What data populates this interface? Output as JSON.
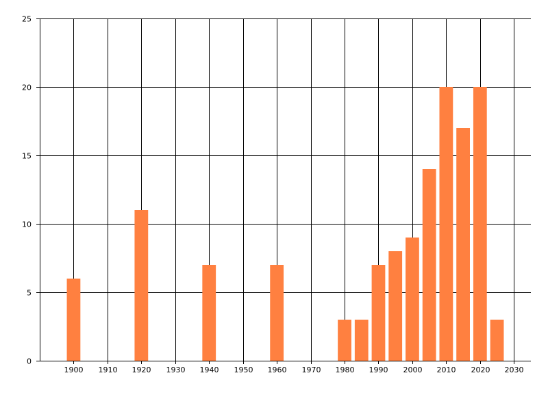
{
  "chart_data": {
    "type": "bar",
    "x": [
      1900,
      1920,
      1940,
      1960,
      1980,
      1985,
      1990,
      1995,
      2000,
      2005,
      2010,
      2015,
      2020,
      2025
    ],
    "values": [
      6,
      11,
      7,
      7,
      3,
      3,
      7,
      8,
      9,
      14,
      20,
      17,
      20,
      3
    ],
    "xlim": [
      1890,
      2035
    ],
    "ylim": [
      0,
      25
    ],
    "x_ticks": [
      1900,
      1910,
      1920,
      1930,
      1940,
      1950,
      1960,
      1970,
      1980,
      1990,
      2000,
      2010,
      2020,
      2030
    ],
    "x_tick_labels": [
      "1900",
      "1910",
      "1920",
      "1930",
      "1940",
      "1950",
      "1960",
      "1970",
      "1980",
      "1990",
      "2000",
      "2010",
      "2020",
      "2030"
    ],
    "y_ticks": [
      0,
      5,
      10,
      15,
      20,
      25
    ],
    "y_tick_labels": [
      "0",
      "5",
      "10",
      "15",
      "20",
      "25"
    ],
    "bar_width": 4,
    "grid": true,
    "title": "",
    "xlabel": "",
    "ylabel": "",
    "colors": {
      "bar": "#ff8040",
      "grid": "#000000",
      "axis": "#000000",
      "background": "#ffffff"
    }
  }
}
